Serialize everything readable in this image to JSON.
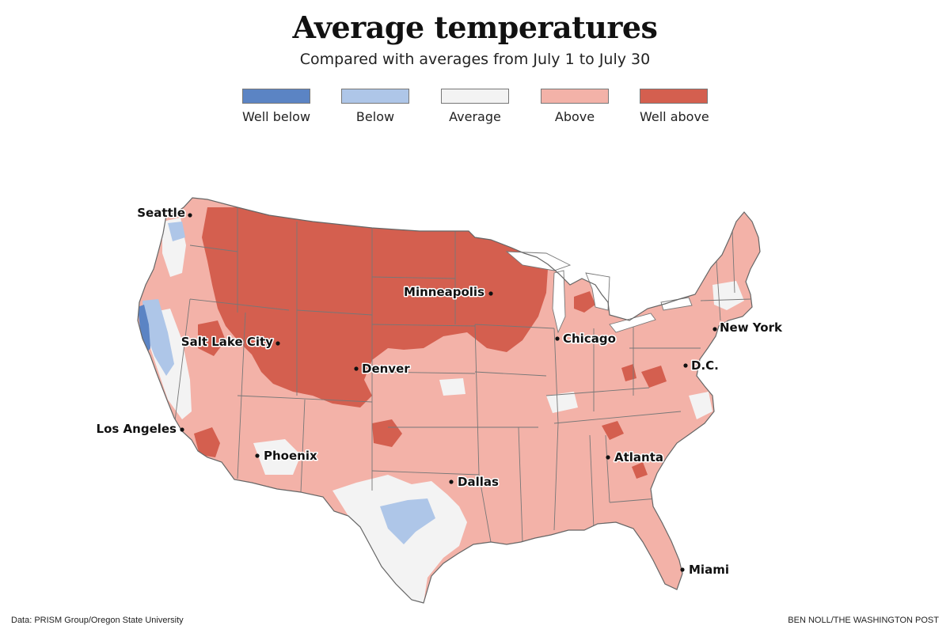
{
  "title": "Average temperatures",
  "subtitle": "Compared with averages from July 1 to July 30",
  "legend": [
    {
      "label": "Well below",
      "color": "#5b84c4"
    },
    {
      "label": "Below",
      "color": "#aec6e8"
    },
    {
      "label": "Average",
      "color": "#f3f3f3"
    },
    {
      "label": "Above",
      "color": "#f3b2a8"
    },
    {
      "label": "Well above",
      "color": "#d45f4f"
    }
  ],
  "cities": [
    {
      "name": "Seattle"
    },
    {
      "name": "Salt Lake City"
    },
    {
      "name": "Los Angeles"
    },
    {
      "name": "Phoenix"
    },
    {
      "name": "Denver"
    },
    {
      "name": "Minneapolis"
    },
    {
      "name": "Chicago"
    },
    {
      "name": "Dallas"
    },
    {
      "name": "Atlanta"
    },
    {
      "name": "D.C."
    },
    {
      "name": "New York"
    },
    {
      "name": "Miami"
    }
  ],
  "footer": {
    "source": "Data: PRISM Group/Oregon State University",
    "credit": "BEN NOLL/THE WASHINGTON POST"
  }
}
